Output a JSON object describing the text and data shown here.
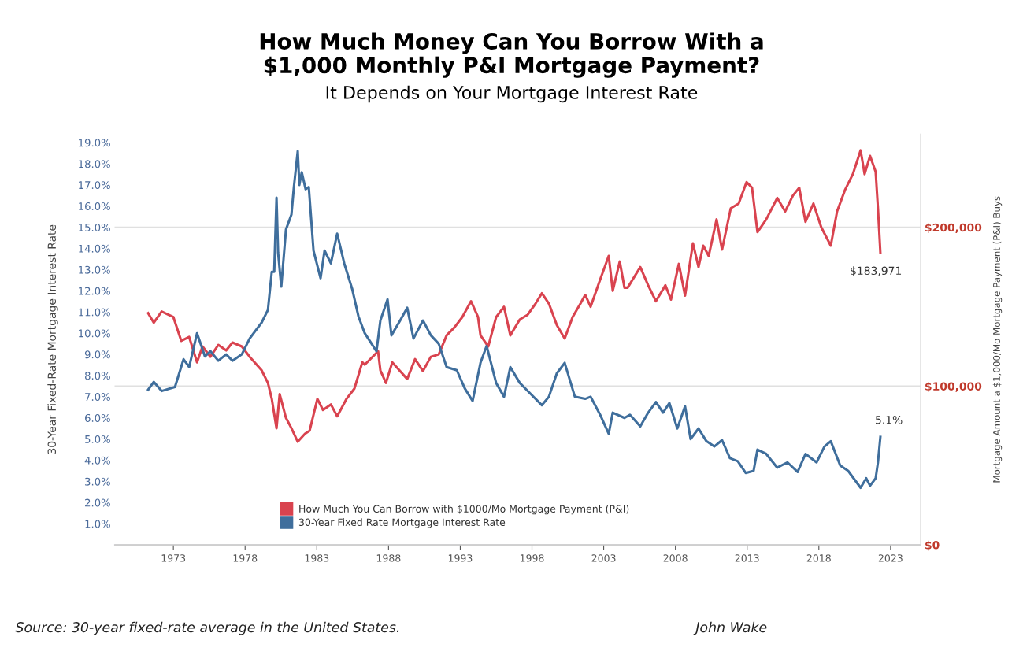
{
  "chart_data": {
    "type": "line",
    "title": "How Much Money Can You Borrow With a\n$1,000 Monthly P&I Mortgage Payment?",
    "subtitle": "It Depends on Your Mortgage Interest Rate",
    "ylabel": "30-Year Fixed-Rate Mortgage Interest Rate",
    "y2label": "Mortgage Amount a $1,000/Mo Mortgage Payment (P&I) Buys",
    "series": [
      {
        "name": "How Much You Can Borrow with $1000/Mo Mortgage Payment (P&I)",
        "color": "#d9434f",
        "axis": "y2",
        "x": [
          1971.24,
          1971.63,
          1972.18,
          1973.0,
          1973.55,
          1974.1,
          1974.65,
          1975.03,
          1975.58,
          1976.13,
          1976.68,
          1977.12,
          1977.77,
          1978.32,
          1979.15,
          1979.59,
          1979.86,
          1980.19,
          1980.41,
          1980.85,
          1981.23,
          1981.67,
          1982.17,
          1982.5,
          1983.04,
          1983.43,
          1983.98,
          1984.42,
          1985.07,
          1985.62,
          1986.17,
          1986.34,
          1987.27,
          1987.43,
          1987.82,
          1988.26,
          1989.3,
          1989.85,
          1990.4,
          1990.95,
          1991.5,
          1992.05,
          1992.59,
          1993.14,
          1993.75,
          1994.24,
          1994.41,
          1994.95,
          1995.5,
          1996.05,
          1996.49,
          1997.15,
          1997.7,
          1998.25,
          1998.69,
          1999.18,
          1999.73,
          2000.28,
          2000.83,
          2001.38,
          2001.71,
          2002.09,
          2002.75,
          2003.35,
          2003.63,
          2004.12,
          2004.45,
          2004.67,
          2005.55,
          2006.1,
          2006.64,
          2007.3,
          2007.69,
          2008.24,
          2008.67,
          2009.22,
          2009.61,
          2009.94,
          2010.32,
          2010.87,
          2011.25,
          2011.86,
          2012.41,
          2012.96,
          2013.34,
          2013.72,
          2014.33,
          2015.1,
          2015.65,
          2016.19,
          2016.63,
          2017.07,
          2017.62,
          2018.17,
          2018.83,
          2019.27,
          2019.82,
          2020.37,
          2020.91,
          2021.19,
          2021.57,
          2021.96,
          2022.12,
          2022.29
        ],
        "values": [
          146000,
          140000,
          147000,
          143500,
          128500,
          131000,
          115000,
          125000,
          118500,
          126000,
          122500,
          127500,
          125000,
          118500,
          110000,
          102000,
          92000,
          73500,
          95000,
          80000,
          73500,
          65000,
          70000,
          72000,
          92000,
          85000,
          88500,
          81000,
          92000,
          98500,
          115000,
          113500,
          122000,
          110000,
          102000,
          115000,
          104500,
          117000,
          109500,
          118500,
          120000,
          132000,
          137000,
          143500,
          153500,
          143500,
          132000,
          125000,
          143500,
          150000,
          132000,
          142000,
          145000,
          152000,
          158500,
          152000,
          138500,
          130000,
          143500,
          152000,
          157500,
          150000,
          167000,
          182000,
          160000,
          178500,
          162000,
          162000,
          175000,
          163500,
          153500,
          163500,
          154500,
          177000,
          157000,
          190000,
          175000,
          188500,
          182000,
          205000,
          186000,
          212000,
          215000,
          228500,
          225000,
          197000,
          205000,
          218500,
          210000,
          220000,
          225000,
          203500,
          215000,
          200000,
          188500,
          210000,
          223500,
          233500,
          248500,
          233500,
          245000,
          235000,
          212000,
          183971
        ]
      },
      {
        "name": "30-Year Fixed Rate Mortgage Interest Rate",
        "color": "#3f6e9c",
        "x": [
          1971.24,
          1971.63,
          1972.18,
          1973.11,
          1973.71,
          1974.1,
          1974.65,
          1975.2,
          1975.58,
          1976.13,
          1976.68,
          1977.12,
          1977.77,
          1978.32,
          1979.15,
          1979.59,
          1979.86,
          1980.03,
          1980.19,
          1980.3,
          1980.52,
          1980.85,
          1981.23,
          1981.4,
          1981.67,
          1981.78,
          1981.95,
          1982.22,
          1982.44,
          1982.77,
          1983.26,
          1983.54,
          1983.98,
          1984.42,
          1984.91,
          1985.46,
          1985.9,
          1986.34,
          1987.16,
          1987.43,
          1987.93,
          1988.2,
          1988.81,
          1989.3,
          1989.74,
          1990.4,
          1990.95,
          1991.5,
          1992.05,
          1992.76,
          1993.31,
          1993.86,
          1994.41,
          1994.84,
          1995.5,
          1996.05,
          1996.49,
          1997.15,
          1997.81,
          1998.69,
          1999.18,
          1999.73,
          2000.28,
          2000.99,
          2001.71,
          2002.09,
          2002.75,
          2003.35,
          2003.63,
          2004.45,
          2004.83,
          2005.55,
          2006.1,
          2006.64,
          2007.14,
          2007.58,
          2008.13,
          2008.67,
          2009.06,
          2009.61,
          2010.16,
          2010.71,
          2011.25,
          2011.8,
          2012.35,
          2012.9,
          2013.45,
          2013.72,
          2014.33,
          2015.1,
          2015.81,
          2016.52,
          2017.07,
          2017.84,
          2018.39,
          2018.83,
          2019.49,
          2020.04,
          2020.91,
          2021.3,
          2021.57,
          2021.96,
          2022.12,
          2022.29
        ],
        "values": [
          7.33,
          7.7,
          7.27,
          7.46,
          8.77,
          8.4,
          10.0,
          8.9,
          9.15,
          8.7,
          9.0,
          8.7,
          9.0,
          9.75,
          10.5,
          11.1,
          12.9,
          12.9,
          16.4,
          13.8,
          12.2,
          14.9,
          15.6,
          16.9,
          18.6,
          17.0,
          17.6,
          16.8,
          16.9,
          13.9,
          12.6,
          13.9,
          13.3,
          14.7,
          13.3,
          12.1,
          10.8,
          10.0,
          9.15,
          10.6,
          11.6,
          9.9,
          10.6,
          11.2,
          9.75,
          10.6,
          9.9,
          9.5,
          8.4,
          8.25,
          7.4,
          6.8,
          8.6,
          9.4,
          7.65,
          7.0,
          8.4,
          7.65,
          7.2,
          6.6,
          7.0,
          8.1,
          8.6,
          7.0,
          6.9,
          7.0,
          6.15,
          5.25,
          6.25,
          6.0,
          6.15,
          5.6,
          6.25,
          6.75,
          6.25,
          6.7,
          5.5,
          6.55,
          5.0,
          5.5,
          4.9,
          4.65,
          4.95,
          4.1,
          3.95,
          3.4,
          3.5,
          4.5,
          4.3,
          3.65,
          3.9,
          3.45,
          4.3,
          3.9,
          4.65,
          4.9,
          3.75,
          3.5,
          2.7,
          3.15,
          2.8,
          3.15,
          3.9,
          5.1
        ]
      }
    ],
    "xlim": [
      1968.9,
      2025.1
    ],
    "xticks": [
      1973,
      1978,
      1983,
      1988,
      1993,
      1998,
      2003,
      2008,
      2013,
      2018,
      2023
    ],
    "ylim": [
      0,
      19.4
    ],
    "yticks": [
      {
        "value": 1,
        "label": "1.0%"
      },
      {
        "value": 2,
        "label": "2.0%"
      },
      {
        "value": 3,
        "label": "3.0%"
      },
      {
        "value": 4,
        "label": "4.0%"
      },
      {
        "value": 5,
        "label": "5.0%"
      },
      {
        "value": 6,
        "label": "6.0%"
      },
      {
        "value": 7,
        "label": "7.0%"
      },
      {
        "value": 8,
        "label": "8.0%"
      },
      {
        "value": 9,
        "label": "9.0%"
      },
      {
        "value": 10,
        "label": "10.0%"
      },
      {
        "value": 11,
        "label": "11.0%"
      },
      {
        "value": 12,
        "label": "12.0%"
      },
      {
        "value": 13,
        "label": "13.0%"
      },
      {
        "value": 14,
        "label": "14.0%"
      },
      {
        "value": 15,
        "label": "15.0%"
      },
      {
        "value": 16,
        "label": "16.0%"
      },
      {
        "value": 17,
        "label": "17.0%"
      },
      {
        "value": 18,
        "label": "18.0%"
      },
      {
        "value": 19,
        "label": "19.0%"
      }
    ],
    "y2lim": [
      0,
      258700
    ],
    "y2ticks": [
      {
        "value": 0,
        "label": "$0"
      },
      {
        "value": 100000,
        "label": "$100,000"
      },
      {
        "value": 200000,
        "label": "$200,000"
      }
    ],
    "grid": "y2",
    "legend": "bottom",
    "marker": "none",
    "line_style": "solid",
    "annotations": [
      "$183,971",
      "5.1%",
      "Source: 30-year fixed-rate average in the United States.",
      "John Wake"
    ]
  }
}
